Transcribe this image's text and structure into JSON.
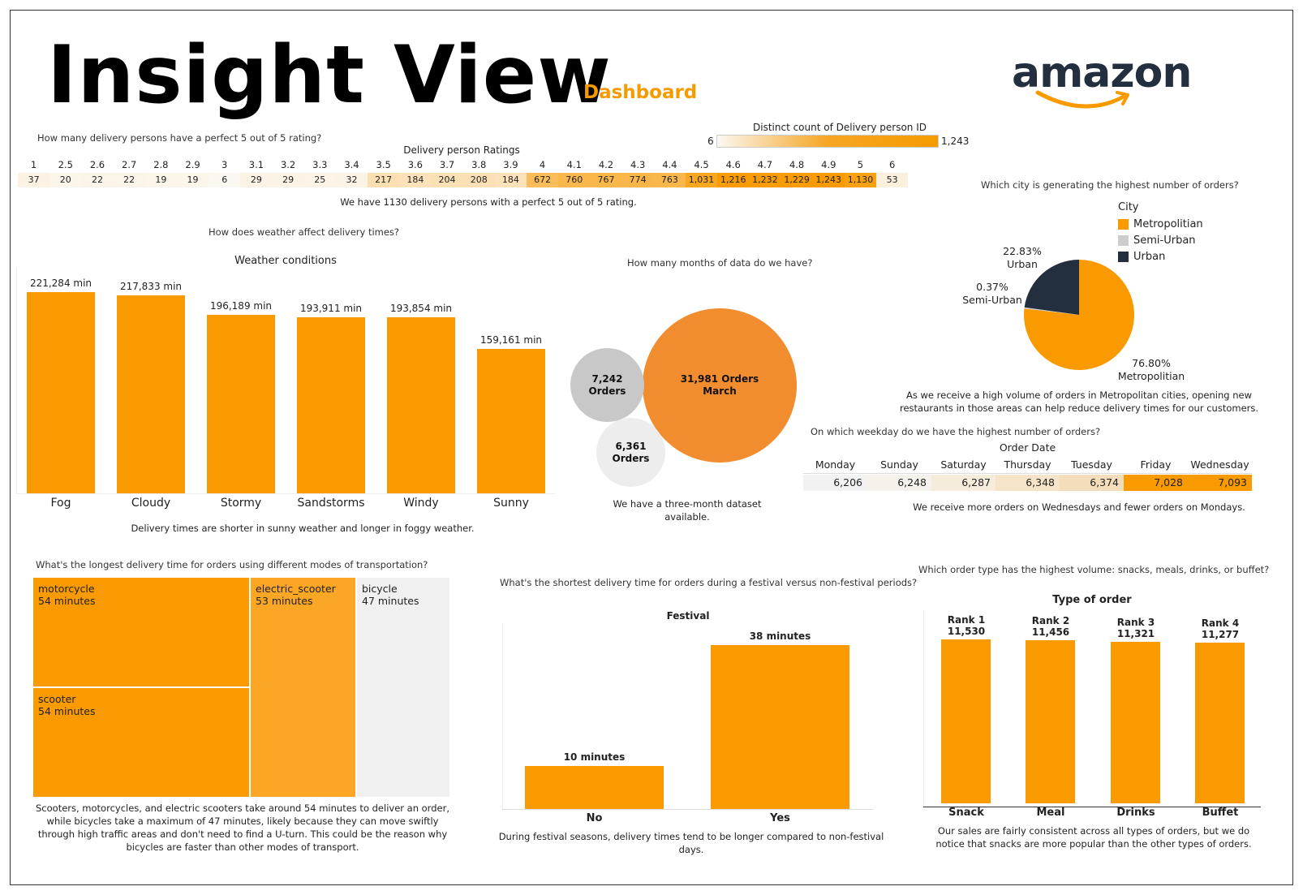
{
  "header": {
    "title": "Insight View",
    "subtitle": "Dashboard",
    "logo_text": "amazon"
  },
  "colors": {
    "accent": "#f99a00",
    "urban": "#232f3e",
    "semi_urban": "#cccccc"
  },
  "ratings": {
    "question": "How many delivery persons have a perfect 5 out of 5 rating?",
    "table_title": "Delivery person Ratings",
    "legend_title": "Distinct count of Delivery person ID",
    "legend_min": "6",
    "legend_max": "1,243",
    "labels": [
      "1",
      "2.5",
      "2.6",
      "2.7",
      "2.8",
      "2.9",
      "3",
      "3.1",
      "3.2",
      "3.3",
      "3.4",
      "3.5",
      "3.6",
      "3.7",
      "3.8",
      "3.9",
      "4",
      "4.1",
      "4.2",
      "4.3",
      "4.4",
      "4.5",
      "4.6",
      "4.7",
      "4.8",
      "4.9",
      "5",
      "6"
    ],
    "values": [
      "37",
      "20",
      "22",
      "22",
      "19",
      "19",
      "6",
      "29",
      "29",
      "25",
      "32",
      "217",
      "184",
      "204",
      "208",
      "184",
      "672",
      "760",
      "767",
      "774",
      "763",
      "1,031",
      "1,216",
      "1,232",
      "1,229",
      "1,243",
      "1,130",
      "53"
    ],
    "note": "We have 1130 delivery persons with a perfect 5 out of 5 rating."
  },
  "weather": {
    "question": "How does weather affect delivery times?",
    "note": "Delivery times are shorter in sunny weather and longer in foggy weather."
  },
  "months": {
    "question": "How many months of data do we have?",
    "bubbles": [
      {
        "line1": "31,981 Orders",
        "line2": "March",
        "value": 31981
      },
      {
        "line1": "7,242",
        "line2": "Orders",
        "value": 7242
      },
      {
        "line1": "6,361",
        "line2": "Orders",
        "value": 6361
      }
    ],
    "note": "We have a three-month dataset available."
  },
  "city": {
    "question": "Which city is generating the highest number of orders?",
    "legend_title": "City",
    "legend": [
      "Metropolitian",
      "Semi-Urban",
      "Urban"
    ],
    "labels": [
      {
        "pct": "76.80%",
        "name": "Metropolitian"
      },
      {
        "pct": "0.37%",
        "name": "Semi-Urban"
      },
      {
        "pct": "22.83%",
        "name": "Urban"
      }
    ],
    "note_line1": "As we receive a high volume of orders in Metropolitan cities, opening new",
    "note_line2": "restaurants in those areas can help reduce delivery times for our customers."
  },
  "weekday": {
    "question": "On which weekday do we have the highest number of orders?",
    "table_title": "Order Date",
    "days": [
      "Monday",
      "Sunday",
      "Saturday",
      "Thursday",
      "Tuesday",
      "Friday",
      "Wednesday"
    ],
    "values": [
      "6,206",
      "6,248",
      "6,287",
      "6,348",
      "6,374",
      "7,028",
      "7,093"
    ],
    "note": "We receive more orders on Wednesdays and fewer orders on Mondays."
  },
  "transport": {
    "question": "What's the longest delivery time for orders using different modes of transportation?",
    "items": [
      {
        "name": "motorcycle",
        "value": "54 minutes"
      },
      {
        "name": "scooter",
        "value": "54 minutes"
      },
      {
        "name": "electric_scooter",
        "value": "53 minutes"
      },
      {
        "name": "bicycle",
        "value": "47 minutes"
      }
    ],
    "note": "Scooters, motorcycles, and electric scooters take around 54 minutes to deliver an order, while bicycles take a maximum of 47 minutes, likely because they can move swiftly through high traffic areas and don't need to find a U-turn. This could be the reason why bicycles are faster than other modes of transport."
  },
  "festival": {
    "question": "What's the shortest delivery time for orders during a festival versus non-festival periods?",
    "note": "During festival seasons, delivery times tend to be longer compared to non-festival days."
  },
  "ordertype": {
    "question": "Which order type has the highest volume: snacks, meals, drinks, or buffet?",
    "note": "Our sales are fairly consistent across all types of orders, but we do notice that snacks are more popular than the other types of orders."
  },
  "chart_data": [
    {
      "type": "bar",
      "title": "Weather conditions",
      "categories": [
        "Fog",
        "Cloudy",
        "Stormy",
        "Sandstorms",
        "Windy",
        "Sunny"
      ],
      "values": [
        221284,
        217833,
        196189,
        193911,
        193854,
        159161
      ],
      "value_labels": [
        "221,284 min",
        "217,833 min",
        "196,189 min",
        "193,911 min",
        "193,854 min",
        "159,161 min"
      ],
      "ylim": [
        0,
        221284
      ]
    },
    {
      "type": "pie",
      "categories": [
        "Metropolitian",
        "Semi-Urban",
        "Urban"
      ],
      "values": [
        76.8,
        0.37,
        22.83
      ]
    },
    {
      "type": "bar",
      "title": "Festival",
      "categories": [
        "No",
        "Yes"
      ],
      "values": [
        10,
        38
      ],
      "value_labels": [
        "10 minutes",
        "38 minutes"
      ],
      "ylim": [
        0,
        38
      ]
    },
    {
      "type": "bar",
      "title": "Type of order",
      "categories": [
        "Snack",
        "Meal",
        "Drinks",
        "Buffet"
      ],
      "values": [
        11530,
        11456,
        11321,
        11277
      ],
      "value_labels": [
        [
          "Rank 1",
          "11,530"
        ],
        [
          "Rank 2",
          "11,456"
        ],
        [
          "Rank 3",
          "11,321"
        ],
        [
          "Rank 4",
          "11,277"
        ]
      ]
    }
  ]
}
